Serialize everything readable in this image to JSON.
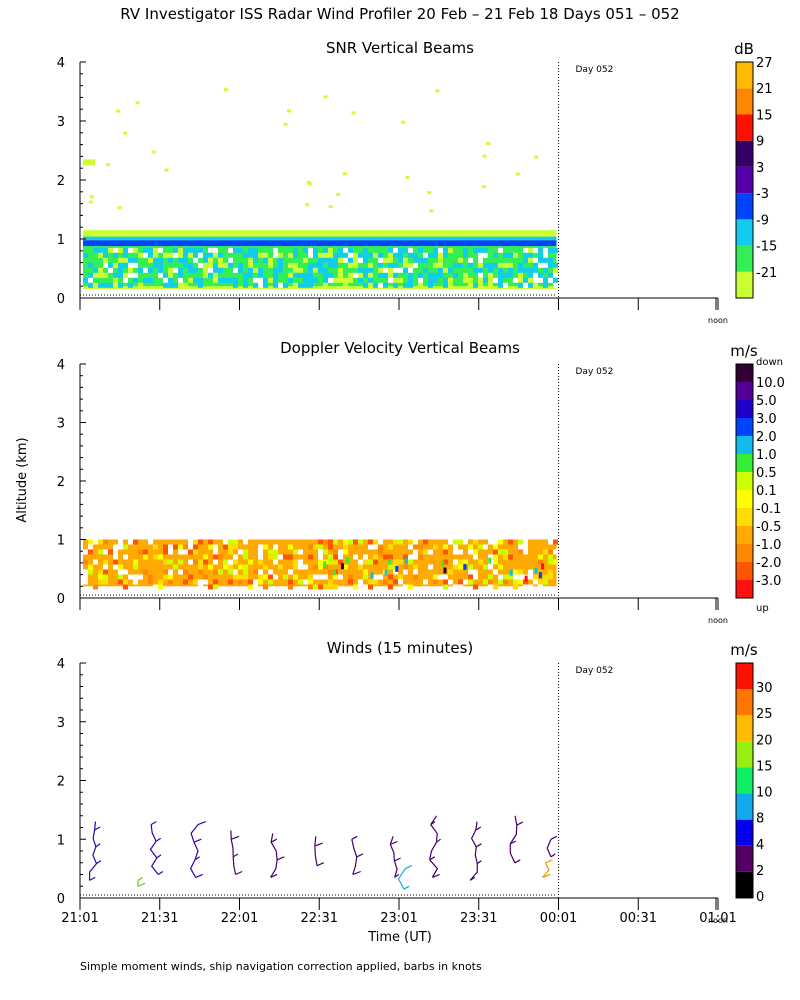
{
  "figure": {
    "title": "RV Investigator ISS Radar Wind Profiler  20 Feb – 21 Feb 18 Days 051 – 052",
    "footnote": "Simple moment winds, ship navigation correction applied, barbs in knots",
    "shared_ylabel": "Altitude (km)",
    "shared_xlabel": "Time (UT)",
    "day_marker_label": "Day 052",
    "noon_label": "noon"
  },
  "chart_data": [
    {
      "type": "heatmap",
      "title": "SNR Vertical Beams",
      "ylabel": "Altitude (km)",
      "ylim": [
        0,
        4
      ],
      "yticks": [
        "0",
        "1",
        "2",
        "3",
        "4"
      ],
      "x_tick_labels": [],
      "colorbar": {
        "unit": "dB",
        "colors": [
          "#ccff33",
          "#33ee55",
          "#11ccee",
          "#0044ff",
          "#5500aa",
          "#330066",
          "#ff1100",
          "#ff8800",
          "#ffbb00"
        ],
        "tick_labels": [
          "-21",
          "-15",
          "-9",
          "-3",
          "3",
          "9",
          "15",
          "21",
          "27"
        ]
      },
      "layers": [
        {
          "name": "",
          "color": "#ccff33",
          "bottom_km": 0.15,
          "top_km": 1.15
        },
        {
          "name": "",
          "color": "#33ee55",
          "bottom_km": 0.2,
          "top_km": 0.95
        },
        {
          "name": "",
          "color": "#11ccee",
          "bottom_km": 0.25,
          "top_km": 0.9
        },
        {
          "name": "",
          "color": "#0044ff",
          "bottom_km": 0.85,
          "top_km": 0.95
        }
      ],
      "data_start": "21:01",
      "data_end": "00:01"
    },
    {
      "type": "heatmap",
      "title": "Doppler Velocity Vertical Beams",
      "ylabel": "Altitude (km)",
      "ylim": [
        0,
        4
      ],
      "yticks": [
        "0",
        "1",
        "2",
        "3",
        "4"
      ],
      "x_tick_labels": [],
      "colorbar": {
        "unit": "m/s",
        "top_label": "down",
        "bottom_label": "up",
        "colors": [
          "#ff1111",
          "#ff5500",
          "#ff8800",
          "#ffaa00",
          "#ffdd00",
          "#ffff00",
          "#ccff00",
          "#33ee33",
          "#11bbee",
          "#0044ff",
          "#2200cc",
          "#550099",
          "#330033"
        ],
        "tick_labels": [
          "-3.0",
          "-2.0",
          "-1.0",
          "-0.5",
          "-0.1",
          "0.1",
          "0.5",
          "1.0",
          "2.0",
          "3.0",
          "5.0",
          "10.0"
        ]
      },
      "data_start": "21:01",
      "data_end": "00:01",
      "layer_bottom_km": 0.2,
      "layer_top_km": 1.0
    },
    {
      "type": "scatter",
      "title": "Winds (15 minutes)",
      "ylabel": "Altitude (km)",
      "xlabel": "Time (UT)",
      "ylim": [
        0,
        4
      ],
      "yticks": [
        "0",
        "1",
        "2",
        "3",
        "4"
      ],
      "x_tick_labels": [
        "21:01",
        "21:31",
        "22:01",
        "22:31",
        "23:01",
        "23:31",
        "00:01",
        "00:31",
        "01:01"
      ],
      "colorbar": {
        "unit": "m/s",
        "colors": [
          "#000000",
          "#550066",
          "#0000ee",
          "#11aaee",
          "#11ee66",
          "#99ee11",
          "#ffbb00",
          "#ff7700",
          "#ff1100"
        ],
        "tick_labels": [
          "0",
          "2",
          "4",
          "8",
          "10",
          "15",
          "20",
          "25",
          "30"
        ]
      },
      "profiles": [
        {
          "time_min": 5,
          "color": "#3300aa",
          "bottom_km": 0.3,
          "top_km": 1.3
        },
        {
          "time_min": 21,
          "color": "#66cc22",
          "bottom_km": 0.2,
          "top_km": 0.3
        },
        {
          "time_min": 28,
          "color": "#3300aa",
          "bottom_km": 0.4,
          "top_km": 1.25
        },
        {
          "time_min": 43,
          "color": "#3300aa",
          "bottom_km": 0.35,
          "top_km": 1.25
        },
        {
          "time_min": 58,
          "color": "#440066",
          "bottom_km": 0.4,
          "top_km": 1.15
        },
        {
          "time_min": 73,
          "color": "#440066",
          "bottom_km": 0.35,
          "top_km": 1.1
        },
        {
          "time_min": 88,
          "color": "#440066",
          "bottom_km": 0.55,
          "top_km": 1.05
        },
        {
          "time_min": 103,
          "color": "#440066",
          "bottom_km": 0.4,
          "top_km": 1.0
        },
        {
          "time_min": 118,
          "color": "#440066",
          "bottom_km": 0.35,
          "top_km": 1.05
        },
        {
          "time_min": 121,
          "color": "#11aadd",
          "bottom_km": 0.15,
          "top_km": 0.5
        },
        {
          "time_min": 133,
          "color": "#440066",
          "bottom_km": 0.35,
          "top_km": 1.4
        },
        {
          "time_min": 148,
          "color": "#440066",
          "bottom_km": 0.3,
          "top_km": 1.3
        },
        {
          "time_min": 163,
          "color": "#440066",
          "bottom_km": 0.6,
          "top_km": 1.4
        },
        {
          "time_min": 175,
          "color": "#ee9900",
          "bottom_km": 0.35,
          "top_km": 0.6
        },
        {
          "time_min": 177,
          "color": "#440066",
          "bottom_km": 0.7,
          "top_km": 1.0
        }
      ]
    }
  ]
}
